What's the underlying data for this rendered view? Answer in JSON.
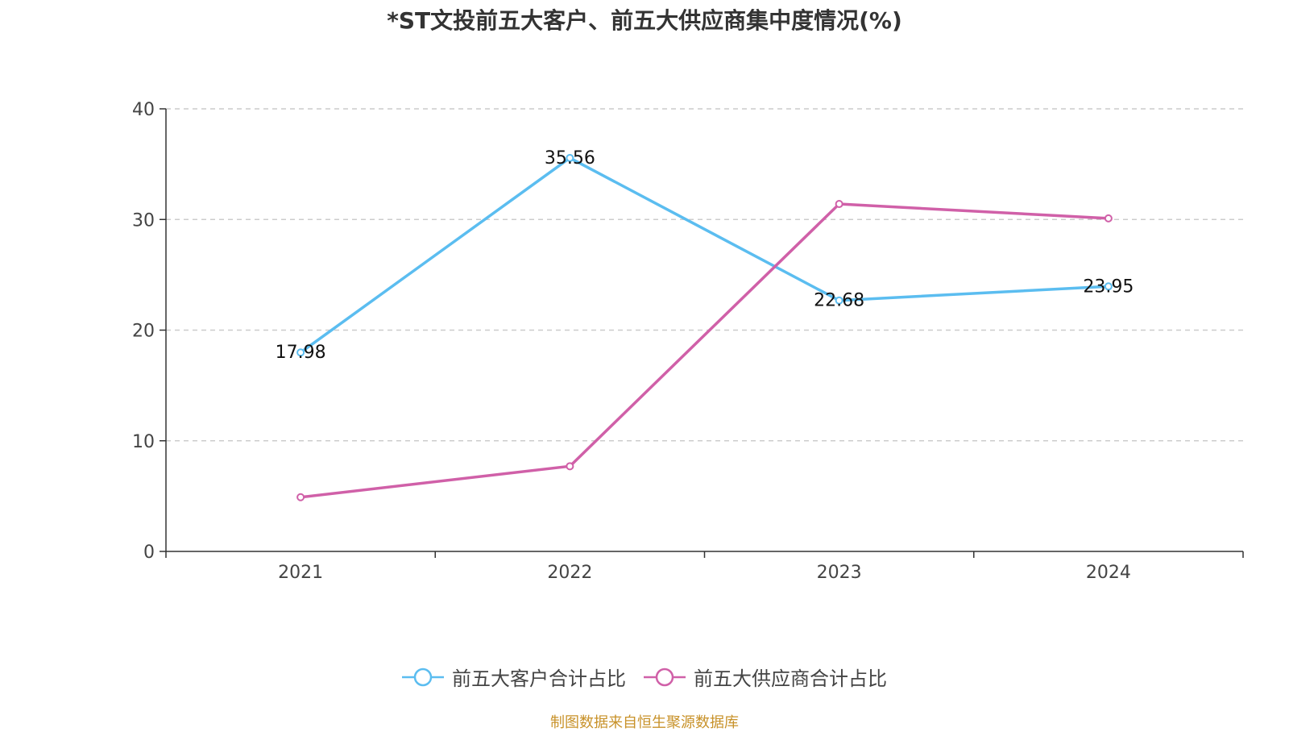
{
  "chart_data": {
    "type": "line",
    "title": "*ST文投前五大客户、前五大供应商集中度情况(%)",
    "categories": [
      "2021",
      "2022",
      "2023",
      "2024"
    ],
    "ylim": [
      0,
      40
    ],
    "yticks": [
      0,
      10,
      20,
      30,
      40
    ],
    "grid": true,
    "legend_position": "bottom",
    "series": [
      {
        "name": "前五大客户合计占比",
        "values": [
          17.98,
          35.56,
          22.68,
          23.95
        ],
        "labels": [
          "17.98",
          "35.56",
          "22.68",
          "23.95"
        ],
        "color": "#5bbdf0"
      },
      {
        "name": "前五大供应商合计占比",
        "values": [
          4.9,
          7.7,
          31.4,
          30.1
        ],
        "color": "#d060a8"
      }
    ]
  },
  "footer": {
    "source": "制图数据来自恒生聚源数据库"
  }
}
